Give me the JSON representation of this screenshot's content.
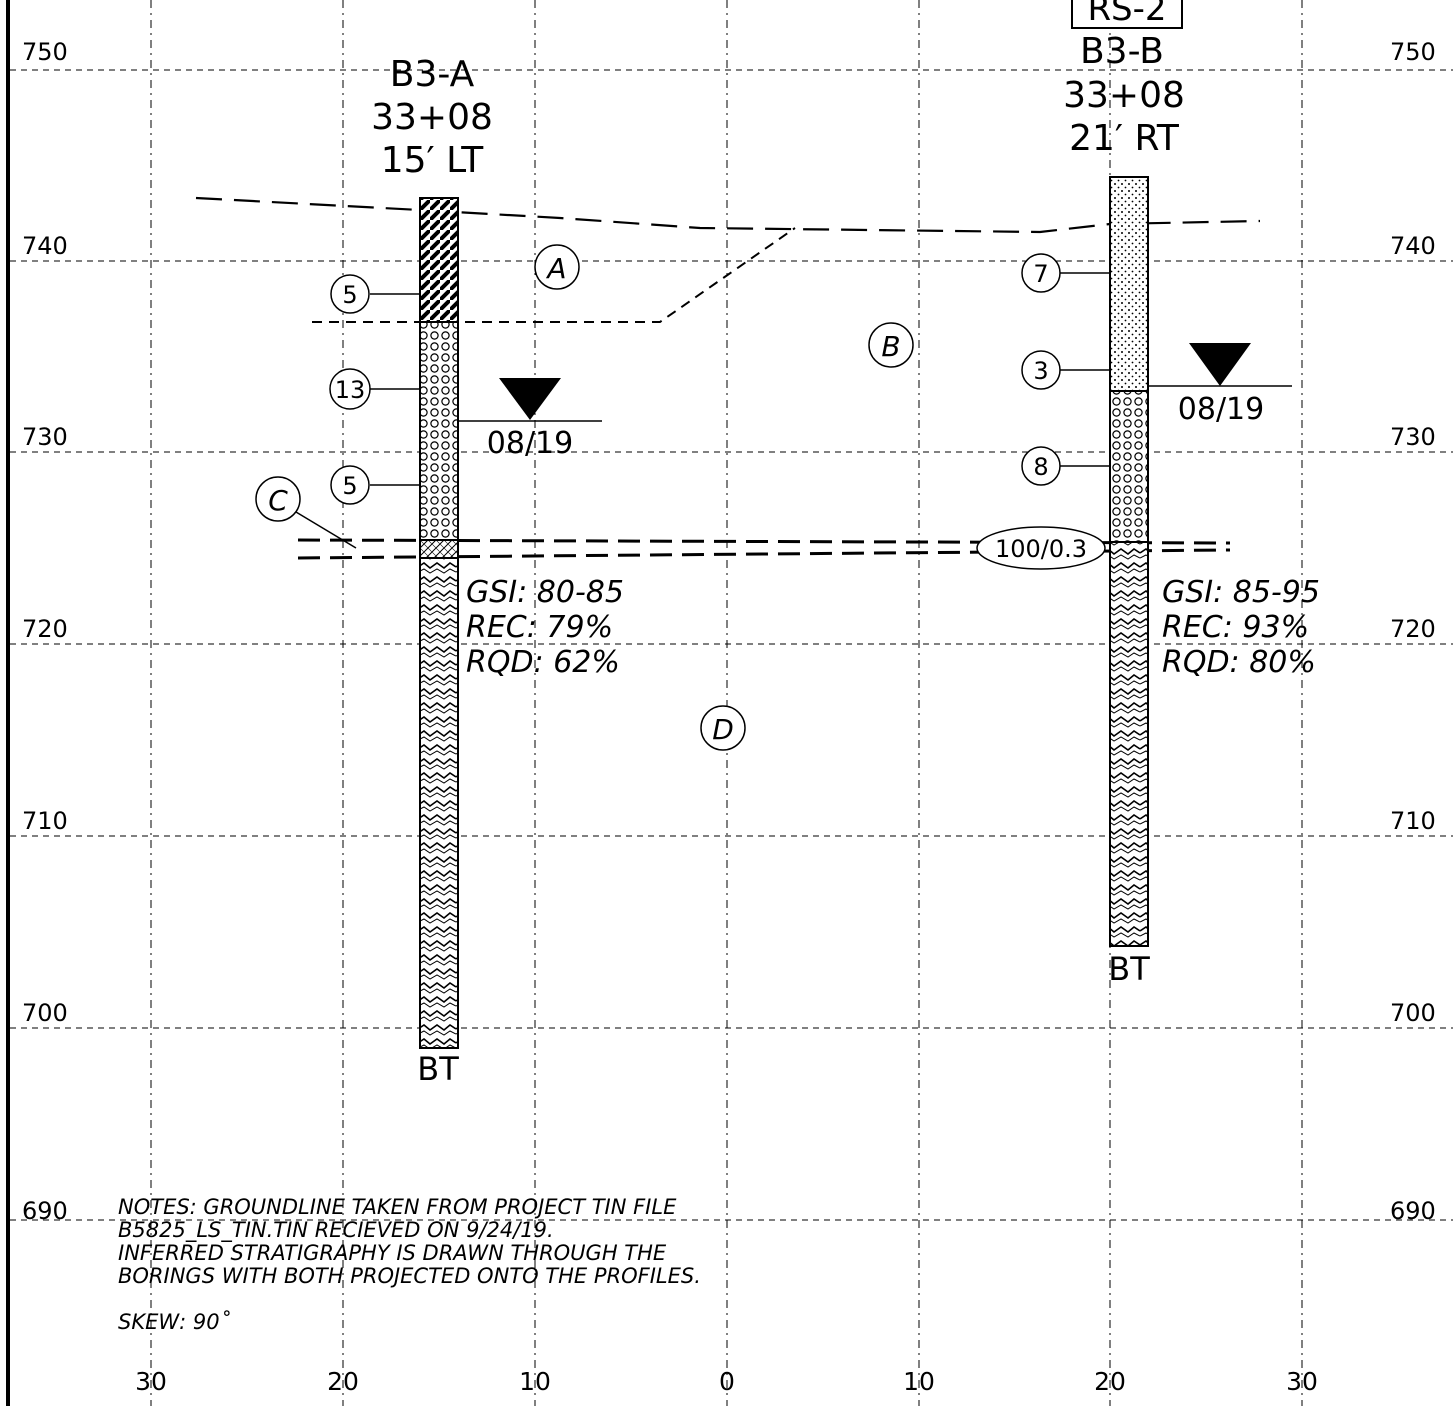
{
  "elevation_labels": [
    "750",
    "740",
    "730",
    "720",
    "710",
    "700",
    "690"
  ],
  "offset_labels": [
    "30",
    "20",
    "10",
    "0",
    "10",
    "20",
    "30"
  ],
  "borings": [
    {
      "id": "B3-A",
      "station": "33+08",
      "offset": "15′ LT",
      "tag": "",
      "blow_counts": [
        "5",
        "13",
        "5"
      ],
      "water_label": "08/19",
      "gsi": "GSI: 80-85",
      "rec": "REC: 79%",
      "rqd": "RQD: 62%",
      "bottom": "BT"
    },
    {
      "id": "B3-B",
      "station": "33+08",
      "offset": "21′ RT",
      "tag": "RS-2",
      "blow_counts": [
        "7",
        "3",
        "8"
      ],
      "refusal": "100/0.3",
      "water_label": "08/19",
      "gsi": "GSI: 85-95",
      "rec": "REC: 93%",
      "rqd": "RQD: 80%",
      "bottom": "BT"
    }
  ],
  "strata_labels": [
    "A",
    "B",
    "C",
    "D"
  ],
  "notes": {
    "line1": "NOTES: GROUNDLINE TAKEN FROM PROJECT TIN FILE",
    "line2": "B5825_LS_TIN.TIN RECIEVED ON 9/24/19.",
    "line3": "INFERRED STRATIGRAPHY IS DRAWN THROUGH THE",
    "line4": "BORINGS WITH BOTH PROJECTED ONTO THE PROFILES.",
    "skew": "SKEW: 90˚"
  }
}
